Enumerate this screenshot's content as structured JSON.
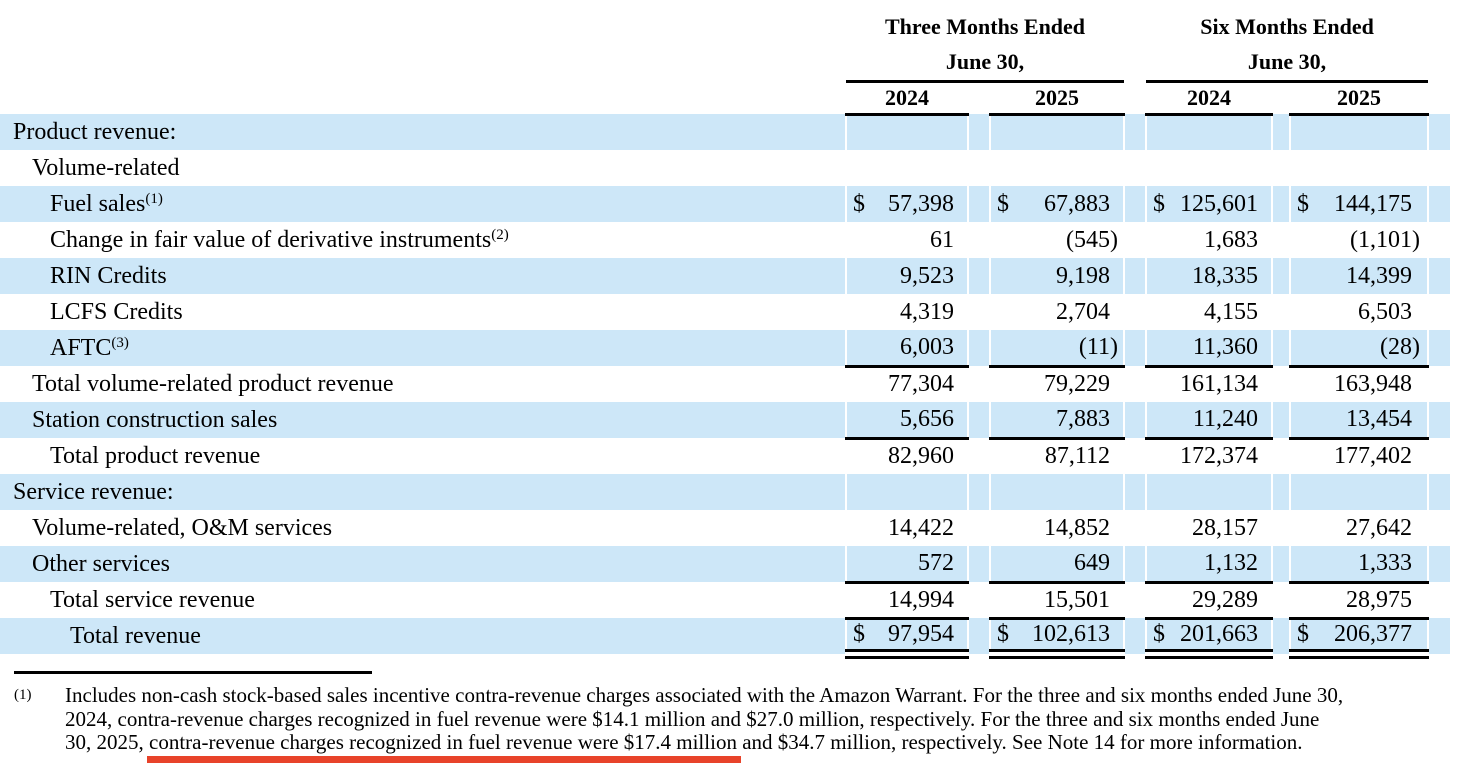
{
  "colors": {
    "row_stripe": "#cde7f8",
    "annotation_underline": "#e8432a",
    "text": "#000000"
  },
  "table": {
    "currency_symbol": "$",
    "col_groups": [
      {
        "title": "Three Months Ended",
        "subtitle": "June 30,",
        "years": [
          "2024",
          "2025"
        ]
      },
      {
        "title": "Six Months Ended",
        "subtitle": "June 30,",
        "years": [
          "2024",
          "2025"
        ]
      }
    ],
    "rows": [
      {
        "label": "Product revenue:",
        "sup": "",
        "indent": 0,
        "dollar": false,
        "underline": "none",
        "values": [
          "",
          "",
          "",
          ""
        ]
      },
      {
        "label": "Volume-related",
        "sup": "",
        "indent": 1,
        "dollar": false,
        "underline": "none",
        "values": [
          "",
          "",
          "",
          ""
        ]
      },
      {
        "label": "Fuel sales",
        "sup": "(1)",
        "indent": 2,
        "dollar": true,
        "underline": "none",
        "values": [
          "57,398",
          "67,883",
          "125,601",
          "144,175"
        ]
      },
      {
        "label": "Change in fair value of derivative instruments",
        "sup": "(2)",
        "indent": 2,
        "dollar": false,
        "underline": "none",
        "values": [
          "61",
          "(545)",
          "1,683",
          "(1,101)"
        ]
      },
      {
        "label": "RIN Credits",
        "sup": "",
        "indent": 2,
        "dollar": false,
        "underline": "none",
        "values": [
          "9,523",
          "9,198",
          "18,335",
          "14,399"
        ]
      },
      {
        "label": "LCFS Credits",
        "sup": "",
        "indent": 2,
        "dollar": false,
        "underline": "none",
        "values": [
          "4,319",
          "2,704",
          "4,155",
          "6,503"
        ]
      },
      {
        "label": "AFTC",
        "sup": "(3)",
        "indent": 2,
        "dollar": false,
        "underline": "single",
        "values": [
          "6,003",
          "(11)",
          "11,360",
          "(28)"
        ]
      },
      {
        "label": "Total volume-related product revenue",
        "sup": "",
        "indent": 1,
        "dollar": false,
        "underline": "none",
        "values": [
          "77,304",
          "79,229",
          "161,134",
          "163,948"
        ]
      },
      {
        "label": "Station construction sales",
        "sup": "",
        "indent": 1,
        "dollar": false,
        "underline": "single",
        "values": [
          "5,656",
          "7,883",
          "11,240",
          "13,454"
        ]
      },
      {
        "label": "Total product revenue",
        "sup": "",
        "indent": 2,
        "dollar": false,
        "underline": "none",
        "values": [
          "82,960",
          "87,112",
          "172,374",
          "177,402"
        ]
      },
      {
        "label": "Service revenue:",
        "sup": "",
        "indent": 0,
        "dollar": false,
        "underline": "none",
        "values": [
          "",
          "",
          "",
          ""
        ]
      },
      {
        "label": "Volume-related, O&M services",
        "sup": "",
        "indent": 1,
        "dollar": false,
        "underline": "none",
        "values": [
          "14,422",
          "14,852",
          "28,157",
          "27,642"
        ]
      },
      {
        "label": "Other services",
        "sup": "",
        "indent": 1,
        "dollar": false,
        "underline": "single",
        "values": [
          "572",
          "649",
          "1,132",
          "1,333"
        ]
      },
      {
        "label": "Total service revenue",
        "sup": "",
        "indent": 2,
        "dollar": false,
        "underline": "single",
        "values": [
          "14,994",
          "15,501",
          "29,289",
          "28,975"
        ]
      },
      {
        "label": "Total revenue",
        "sup": "",
        "indent": 3,
        "dollar": true,
        "underline": "double",
        "values": [
          "97,954",
          "102,613",
          "201,663",
          "206,377"
        ]
      }
    ]
  },
  "footnote": {
    "marker": "(1)",
    "line1": "Includes non-cash stock-based sales incentive contra-revenue charges associated with the Amazon Warrant. For the three and six months ended June 30,",
    "line2": "2024, contra-revenue charges recognized in fuel revenue were $14.1 million and $27.0 million, respectively. For the three and six months ended June",
    "line3_before": "30, 2025, ",
    "line3_underlined": "contra-revenue charges recognized in fuel revenue were $17.4 million",
    "line3_after": " and $34.7 million, respectively. See Note 14 for more information."
  }
}
